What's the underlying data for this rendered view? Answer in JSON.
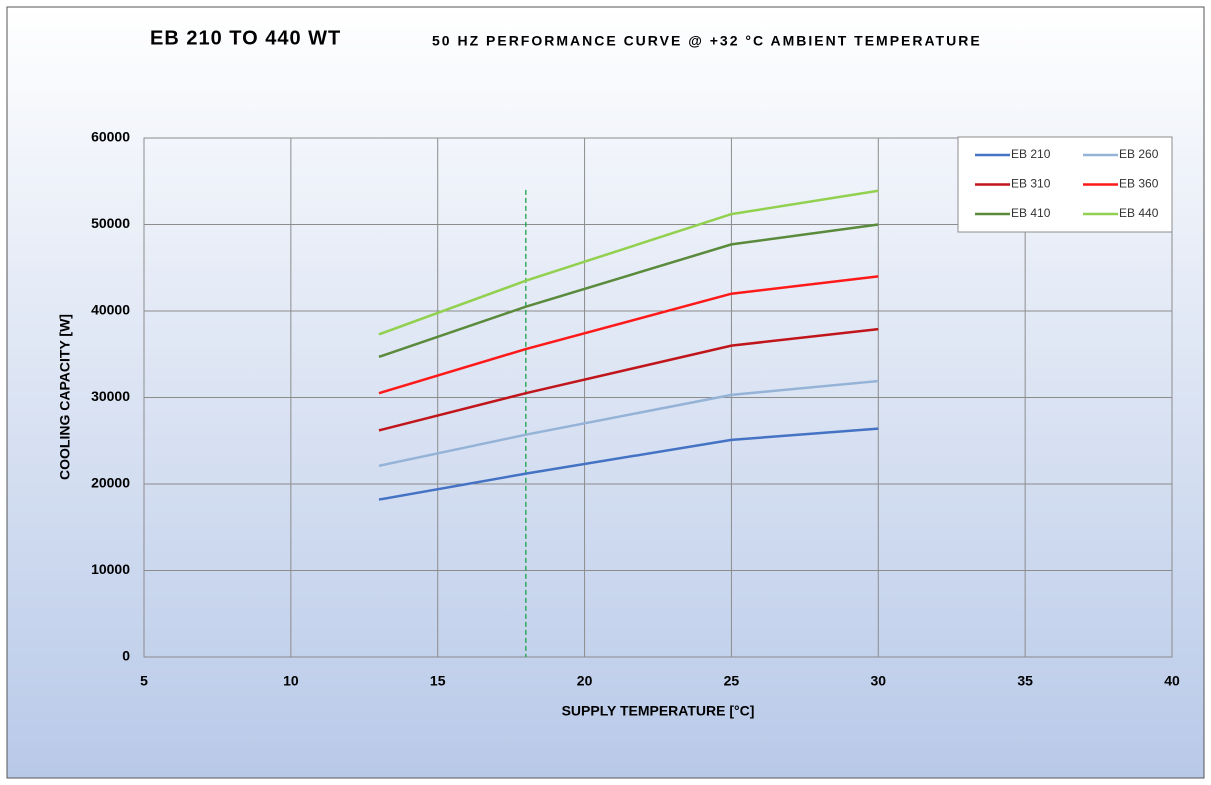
{
  "chart_data": {
    "type": "line",
    "title": "EB 210 TO 440 WT",
    "subtitle": "50 HZ PERFORMANCE CURVE @ +32 °C AMBIENT TEMPERATURE",
    "x_label": "SUPPLY TEMPERATURE [°C]",
    "y_label": "COOLING CAPACITY [W]",
    "x": [
      13,
      18,
      25,
      30
    ],
    "series": [
      {
        "name": "EB 210",
        "color": "#4472c4",
        "values": [
          18200,
          21200,
          25100,
          26400
        ]
      },
      {
        "name": "EB 260",
        "color": "#95b3d7",
        "values": [
          22100,
          25700,
          30300,
          31900
        ]
      },
      {
        "name": "EB 310",
        "color": "#c0161b",
        "values": [
          26200,
          30500,
          36000,
          37900
        ]
      },
      {
        "name": "EB 360",
        "color": "#ff1a1a",
        "values": [
          30500,
          35600,
          42000,
          44000
        ]
      },
      {
        "name": "EB 410",
        "color": "#5a8a3c",
        "values": [
          34700,
          40500,
          47700,
          50000
        ]
      },
      {
        "name": "EB 440",
        "color": "#92d050",
        "values": [
          37300,
          43500,
          51200,
          53900
        ]
      }
    ],
    "xlim": [
      5,
      40
    ],
    "xticks": [
      5,
      10,
      15,
      20,
      25,
      30,
      35,
      40
    ],
    "ylim": [
      0,
      60000
    ],
    "yticks": [
      0,
      10000,
      20000,
      30000,
      40000,
      50000,
      60000
    ],
    "grid": true,
    "legend": "top-right",
    "reference_line": {
      "x": 18,
      "top": 54000,
      "color": "#1aa34a",
      "dashed": true
    }
  }
}
